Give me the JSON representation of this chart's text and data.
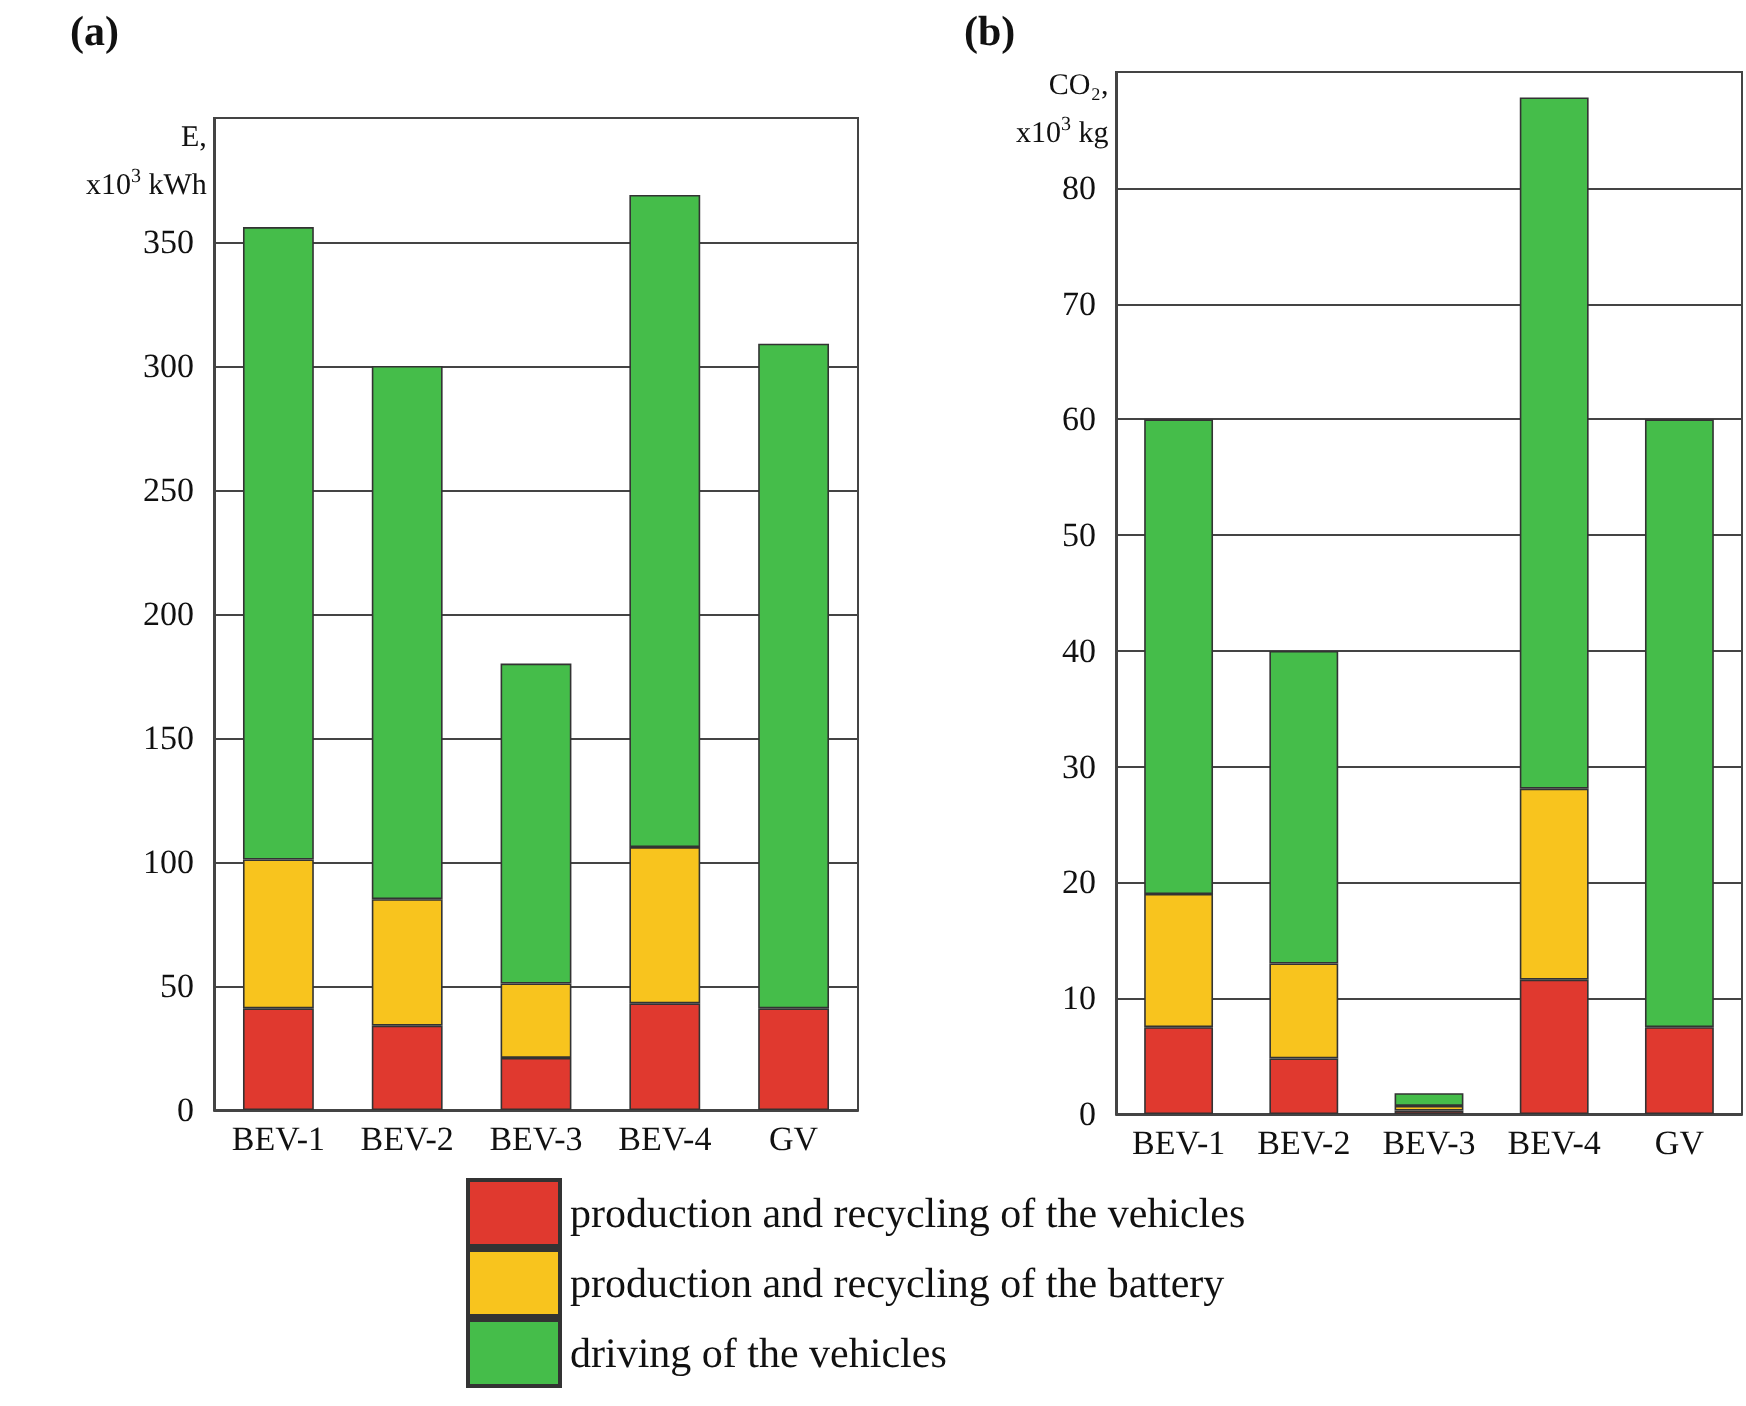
{
  "chart_data": [
    {
      "type": "bar",
      "title": "(a)",
      "ylabel": "E,\nx10$^{3}$ kWh",
      "categories": [
        "BEV-1",
        "BEV-2",
        "BEV-3",
        "BEV-4",
        "GV"
      ],
      "stacked": true,
      "ylim": [
        0,
        400
      ],
      "yticks": [
        0,
        50,
        100,
        150,
        200,
        250,
        300,
        350
      ],
      "grid": "y",
      "legend": "bottom",
      "series": [
        {
          "name": "production and recycling of the vehicles",
          "color": "#e0392f",
          "values": [
            41,
            34,
            21,
            43,
            41
          ]
        },
        {
          "name": "production and recycling of the battery",
          "color": "#f8c41e",
          "values": [
            60,
            51,
            30,
            63,
            null
          ]
        },
        {
          "name": "driving of the vehicles",
          "color": "#45bd4a",
          "values": [
            255,
            215,
            129,
            263,
            268
          ]
        }
      ]
    },
    {
      "type": "bar",
      "title": "(b)",
      "ylabel": "CO₂,\nx10$^{3}$ kg",
      "categories": [
        "BEV-1",
        "BEV-2",
        "BEV-3",
        "BEV-4",
        "GV"
      ],
      "stacked": true,
      "ylim": [
        0,
        90
      ],
      "yticks": [
        0,
        10,
        20,
        30,
        40,
        50,
        60,
        70,
        80
      ],
      "grid": "y",
      "series": [
        {
          "color": "#e0392f",
          "values": [
            7.5,
            4.8,
            0.3,
            11.6,
            7.5
          ]
        },
        {
          "color": "#f8c41e",
          "values": [
            11.5,
            8.2,
            0.4,
            16.5,
            null
          ]
        },
        {
          "color": "#45bd4a",
          "values": [
            41,
            27,
            1.1,
            59.7,
            52.5
          ]
        }
      ]
    }
  ]
}
